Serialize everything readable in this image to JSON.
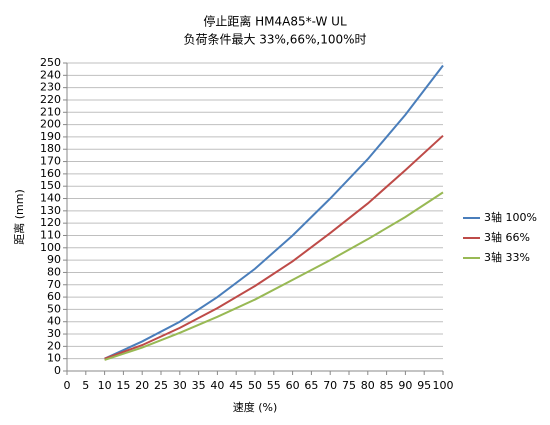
{
  "chart_data": {
    "type": "line",
    "title": "停止距离 HM4A85*-W UL",
    "subtitle": "负荷条件最大 33%,66%,100%时",
    "x_label": "速度 (%)",
    "y_label": "距离 (mm)",
    "x": [
      10,
      20,
      30,
      40,
      50,
      60,
      70,
      80,
      90,
      100
    ],
    "series": [
      {
        "name": "3轴 100%",
        "color": "#4a7ebb",
        "values": [
          10,
          24,
          40,
          60,
          83,
          110,
          140,
          172,
          208,
          248
        ]
      },
      {
        "name": "3轴 66%",
        "color": "#be4b48",
        "values": [
          10,
          21,
          35,
          51,
          69,
          89,
          112,
          136,
          163,
          191
        ]
      },
      {
        "name": "3轴 33%",
        "color": "#98b954",
        "values": [
          9,
          19,
          31,
          44,
          58,
          74,
          90,
          107,
          125,
          145
        ]
      }
    ],
    "xlim": [
      0,
      100
    ],
    "xticks": [
      0,
      5,
      10,
      15,
      20,
      25,
      30,
      35,
      40,
      45,
      50,
      55,
      60,
      65,
      70,
      75,
      80,
      85,
      90,
      95,
      100
    ],
    "ylim": [
      0,
      250
    ],
    "yticks": [
      0,
      10,
      20,
      30,
      40,
      50,
      60,
      70,
      80,
      90,
      100,
      110,
      120,
      130,
      140,
      150,
      160,
      170,
      180,
      190,
      200,
      210,
      220,
      230,
      240,
      250
    ],
    "grid": true,
    "legend": "right"
  }
}
